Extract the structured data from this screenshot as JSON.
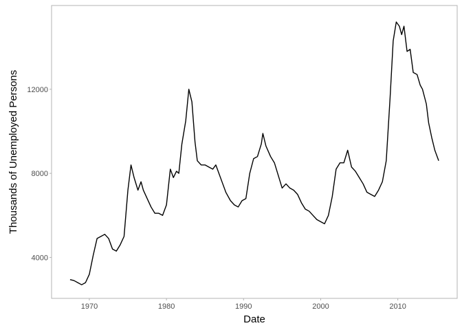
{
  "chart_data": {
    "type": "line",
    "x_label": "Date",
    "y_label": "Thousands of Unemployed Persons",
    "color": "#000000",
    "x": [
      1967.5,
      1968.0,
      1968.5,
      1969.0,
      1969.5,
      1970.0,
      1970.5,
      1971.0,
      1971.5,
      1972.0,
      1972.5,
      1973.0,
      1973.5,
      1974.0,
      1974.5,
      1975.0,
      1975.4,
      1975.8,
      1976.3,
      1976.7,
      1977.0,
      1977.5,
      1978.0,
      1978.5,
      1979.0,
      1979.5,
      1980.0,
      1980.5,
      1980.9,
      1981.3,
      1981.6,
      1982.0,
      1982.5,
      1982.9,
      1983.3,
      1983.7,
      1984.0,
      1984.5,
      1985.0,
      1985.5,
      1986.0,
      1986.4,
      1986.8,
      1987.3,
      1987.7,
      1988.3,
      1988.8,
      1989.3,
      1989.8,
      1990.3,
      1990.8,
      1991.3,
      1991.8,
      1992.3,
      1992.5,
      1992.9,
      1993.5,
      1994.0,
      1994.5,
      1995.0,
      1995.5,
      1996.0,
      1996.5,
      1997.0,
      1997.5,
      1998.0,
      1998.5,
      1999.0,
      1999.5,
      2000.0,
      2000.5,
      2001.0,
      2001.5,
      2002.0,
      2002.5,
      2003.0,
      2003.5,
      2004.0,
      2004.5,
      2005.0,
      2005.5,
      2006.0,
      2006.5,
      2007.0,
      2007.5,
      2008.0,
      2008.5,
      2009.0,
      2009.4,
      2009.8,
      2010.2,
      2010.5,
      2010.8,
      2011.2,
      2011.6,
      2012.0,
      2012.5,
      2012.9,
      2013.2,
      2013.7,
      2014.0,
      2014.4,
      2014.8,
      2015.3
    ],
    "values": [
      2944,
      2900,
      2800,
      2700,
      2800,
      3200,
      4100,
      4900,
      5000,
      5100,
      4900,
      4400,
      4300,
      4600,
      5000,
      7200,
      8400,
      7800,
      7200,
      7600,
      7200,
      6800,
      6400,
      6100,
      6100,
      6000,
      6500,
      8200,
      7800,
      8100,
      8000,
      9400,
      10500,
      12000,
      11400,
      9500,
      8600,
      8400,
      8400,
      8300,
      8200,
      8400,
      8000,
      7500,
      7100,
      6700,
      6500,
      6400,
      6700,
      6800,
      8000,
      8700,
      8800,
      9400,
      9900,
      9300,
      8800,
      8500,
      7900,
      7300,
      7500,
      7300,
      7200,
      7000,
      6600,
      6300,
      6200,
      6000,
      5800,
      5700,
      5600,
      6000,
      6900,
      8200,
      8500,
      8500,
      9100,
      8300,
      8100,
      7800,
      7500,
      7100,
      7000,
      6900,
      7200,
      7600,
      8600,
      11600,
      14300,
      15200,
      15000,
      14600,
      15000,
      13800,
      13900,
      12800,
      12700,
      12200,
      12000,
      11300,
      10400,
      9700,
      9100,
      8600
    ],
    "xlim": [
      1965.1,
      2017.7
    ],
    "ylim": [
      2052,
      15985
    ],
    "xticks": [
      1970,
      1980,
      1990,
      2000,
      2010
    ],
    "yticks": [
      4000,
      8000,
      12000
    ]
  }
}
